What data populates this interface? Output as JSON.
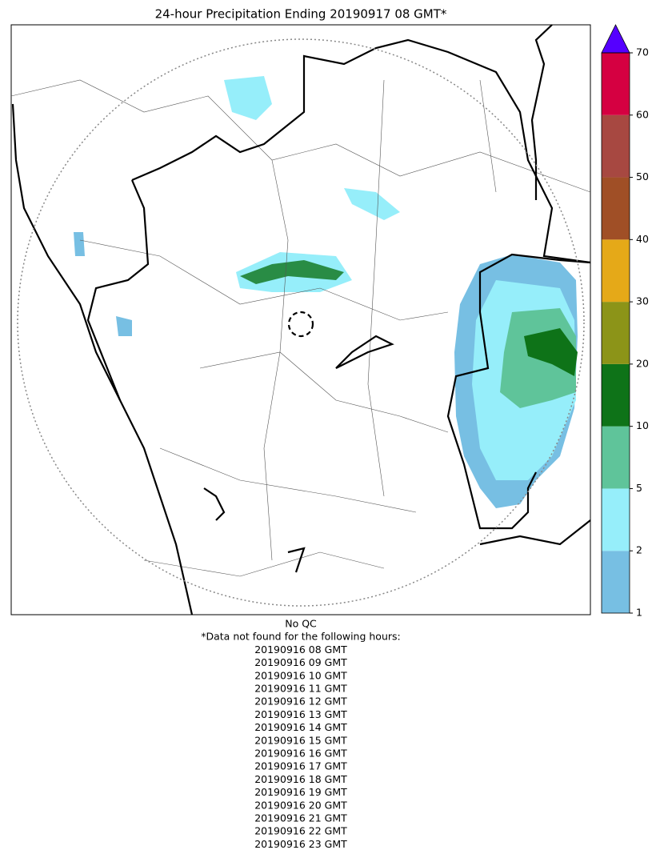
{
  "title": "24-hour Precipitation Ending 20190917 08 GMT*",
  "colorbar": {
    "ticks": [
      1,
      2,
      5,
      10,
      20,
      30,
      40,
      50,
      60,
      70
    ],
    "colors": [
      "#77bfe3",
      "#96eefa",
      "#5fc49a",
      "#0e7318",
      "#8c9418",
      "#e5a918",
      "#a04f26",
      "#a74841",
      "#d50041"
    ],
    "extend_color": "#5500ff"
  },
  "notes": [
    "No QC",
    "*Data not found for the following hours:",
    "20190916 08 GMT",
    "20190916 09 GMT",
    "20190916 10 GMT",
    "20190916 11 GMT",
    "20190916 12 GMT",
    "20190916 13 GMT",
    "20190916 14 GMT",
    "20190916 15 GMT",
    "20190916 16 GMT",
    "20190916 17 GMT",
    "20190916 18 GMT",
    "20190916 19 GMT",
    "20190916 20 GMT",
    "20190916 21 GMT",
    "20190916 22 GMT",
    "20190916 23 GMT"
  ]
}
